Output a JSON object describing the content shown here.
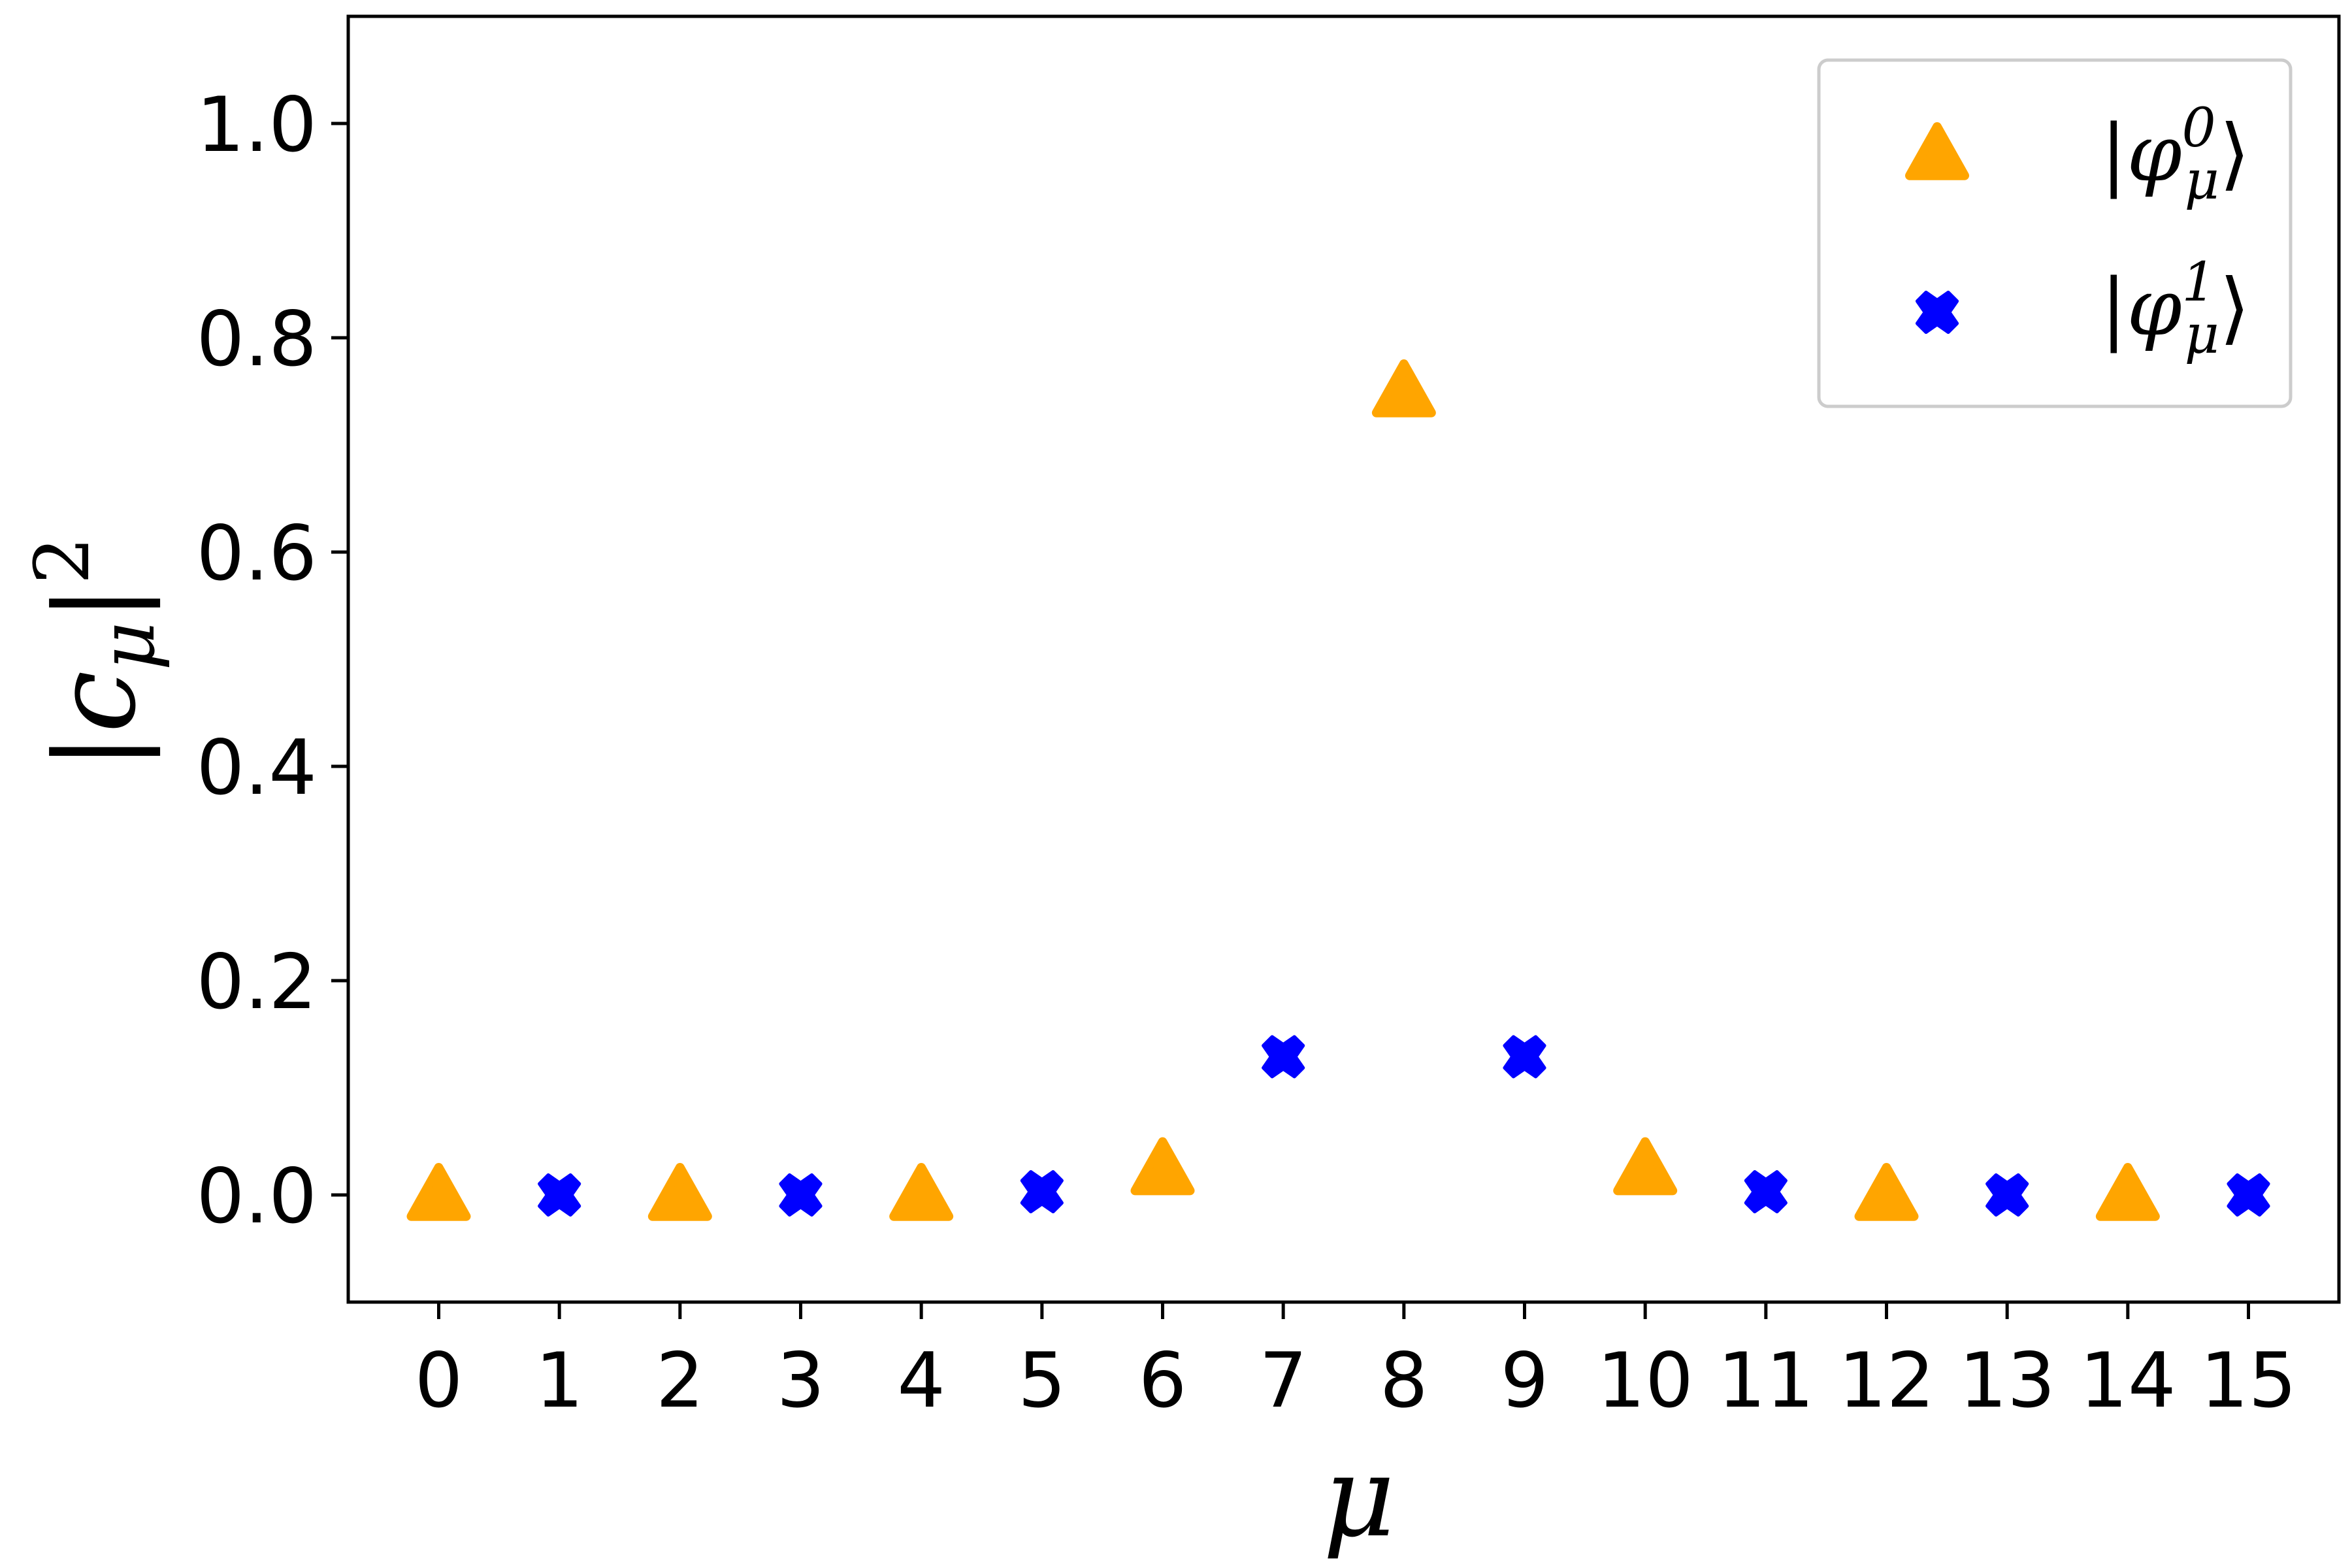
{
  "chart_data": {
    "type": "scatter",
    "title": "",
    "xlabel": "μ",
    "ylabel": "|cμ|²",
    "ylabel_parts": {
      "bar_left": "|",
      "c": "c",
      "sub": "μ",
      "bar_right": "|",
      "sup": "2"
    },
    "xlim": [
      -0.75,
      15.75
    ],
    "ylim": [
      -0.1,
      1.1
    ],
    "xticks": [
      0,
      1,
      2,
      3,
      4,
      5,
      6,
      7,
      8,
      9,
      10,
      11,
      12,
      13,
      14,
      15
    ],
    "xtick_labels": [
      "0",
      "1",
      "2",
      "3",
      "4",
      "5",
      "6",
      "7",
      "8",
      "9",
      "10",
      "11",
      "12",
      "13",
      "14",
      "15"
    ],
    "yticks": [
      0.0,
      0.2,
      0.4,
      0.6,
      0.8,
      1.0
    ],
    "ytick_labels": [
      "0.0",
      "0.2",
      "0.4",
      "0.6",
      "0.8",
      "1.0"
    ],
    "grid": false,
    "legend_position": "top-right",
    "series": [
      {
        "name": "|φμ0⟩",
        "legend_parts": {
          "open": "|",
          "phi": "φ",
          "sup": "0",
          "sub": "μ",
          "close": "⟩"
        },
        "marker": "triangle",
        "color": "#FFA500",
        "x": [
          0,
          2,
          4,
          6,
          8,
          10,
          12,
          14
        ],
        "y": [
          0.0,
          0.0,
          0.0,
          0.024,
          0.75,
          0.024,
          0.0,
          0.0
        ]
      },
      {
        "name": "|φμ1⟩",
        "legend_parts": {
          "open": "|",
          "phi": "φ",
          "sup": "1",
          "sub": "μ",
          "close": "⟩"
        },
        "marker": "x-filled",
        "color": "#0000FF",
        "x": [
          1,
          3,
          5,
          7,
          9,
          11,
          13,
          15
        ],
        "y": [
          0.0,
          0.0,
          0.003,
          0.129,
          0.129,
          0.003,
          0.0,
          0.0
        ]
      }
    ]
  }
}
